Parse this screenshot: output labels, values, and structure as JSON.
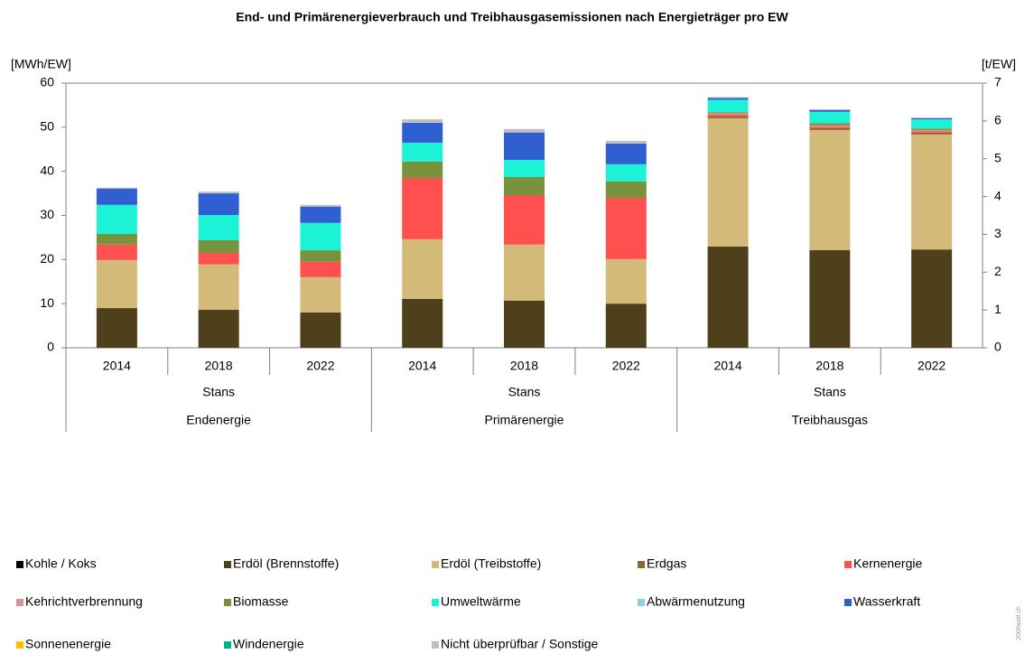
{
  "chart_data": {
    "type": "stacked-bar",
    "title": "End- und Primärenergieverbrauch und Treibhausgasemissionen nach Energieträger pro EW",
    "ylabel": "[MWh/EW]",
    "y2label": "[t/EW]",
    "categories": [
      "2014",
      "2018",
      "2022",
      "2014",
      "2018",
      "2022",
      "2014",
      "2018",
      "2022"
    ],
    "sublabels": [
      "Stans",
      "Stans",
      "Stans"
    ],
    "groups": [
      {
        "label": "Endenergie",
        "axis": "y"
      },
      {
        "label": "Primärenergie",
        "axis": "y"
      },
      {
        "label": "Treibhausgas",
        "axis": "y2"
      }
    ],
    "ylim": [
      0,
      60
    ],
    "yticks": [
      0,
      10,
      20,
      30,
      40,
      50,
      60
    ],
    "y2lim": [
      0,
      7
    ],
    "y2ticks": [
      0,
      1,
      2,
      3,
      4,
      5,
      6,
      7
    ],
    "grid": false,
    "series": [
      {
        "name": "Kohle / Koks",
        "color": "#000000",
        "values": [
          0,
          0,
          0,
          0,
          0,
          0,
          0,
          0,
          0
        ]
      },
      {
        "name": "Erdöl (Brennstoffe)",
        "color": "#4f401c",
        "values": [
          9.0,
          8.6,
          8.0,
          11.1,
          10.7,
          10.0,
          2.68,
          2.58,
          2.6
        ]
      },
      {
        "name": "Erdöl (Treibstoffe)",
        "color": "#d4ba79",
        "values": [
          10.9,
          10.3,
          8.0,
          13.5,
          12.7,
          10.1,
          3.39,
          3.18,
          3.04
        ]
      },
      {
        "name": "Erdgas",
        "color": "#8c6a38",
        "values": [
          0,
          0,
          0,
          0,
          0,
          0,
          0.05,
          0.05,
          0.05
        ]
      },
      {
        "name": "Kernenergie",
        "color": "#ff5050",
        "values": [
          3.5,
          2.6,
          3.5,
          13.9,
          11.2,
          13.9,
          0.05,
          0.04,
          0.04
        ]
      },
      {
        "name": "Kehrichtverbrennung",
        "color": "#d99594",
        "values": [
          0,
          0,
          0,
          0,
          0,
          0,
          0.03,
          0.03,
          0.03
        ]
      },
      {
        "name": "Biomasse",
        "color": "#77933c",
        "values": [
          2.4,
          2.9,
          2.6,
          3.7,
          4.1,
          3.7,
          0.03,
          0.06,
          0.04
        ]
      },
      {
        "name": "Umweltwärme",
        "color": "#1cf2d6",
        "values": [
          6.6,
          5.7,
          6.2,
          4.3,
          3.9,
          3.9,
          0.33,
          0.3,
          0.24
        ]
      },
      {
        "name": "Abwärmenutzung",
        "color": "#92cddc",
        "values": [
          0,
          0,
          0,
          0,
          0,
          0,
          0,
          0,
          0
        ]
      },
      {
        "name": "Wasserkraft",
        "color": "#2f5fd0",
        "values": [
          3.7,
          4.9,
          3.7,
          4.5,
          6.2,
          4.7,
          0.05,
          0.05,
          0.03
        ]
      },
      {
        "name": "Sonnenenergie",
        "color": "#ffc000",
        "values": [
          0,
          0,
          0,
          0,
          0,
          0,
          0,
          0,
          0
        ]
      },
      {
        "name": "Windenergie",
        "color": "#00b386",
        "values": [
          0,
          0,
          0,
          0,
          0,
          0,
          0,
          0,
          0
        ]
      },
      {
        "name": "Nicht überprüfbar / Sonstige",
        "color": "#bfbfbf",
        "values": [
          0.2,
          0.4,
          0.4,
          0.8,
          0.8,
          0.6,
          0.02,
          0.02,
          0.02
        ]
      }
    ],
    "watermark": "2000watt.ch"
  }
}
